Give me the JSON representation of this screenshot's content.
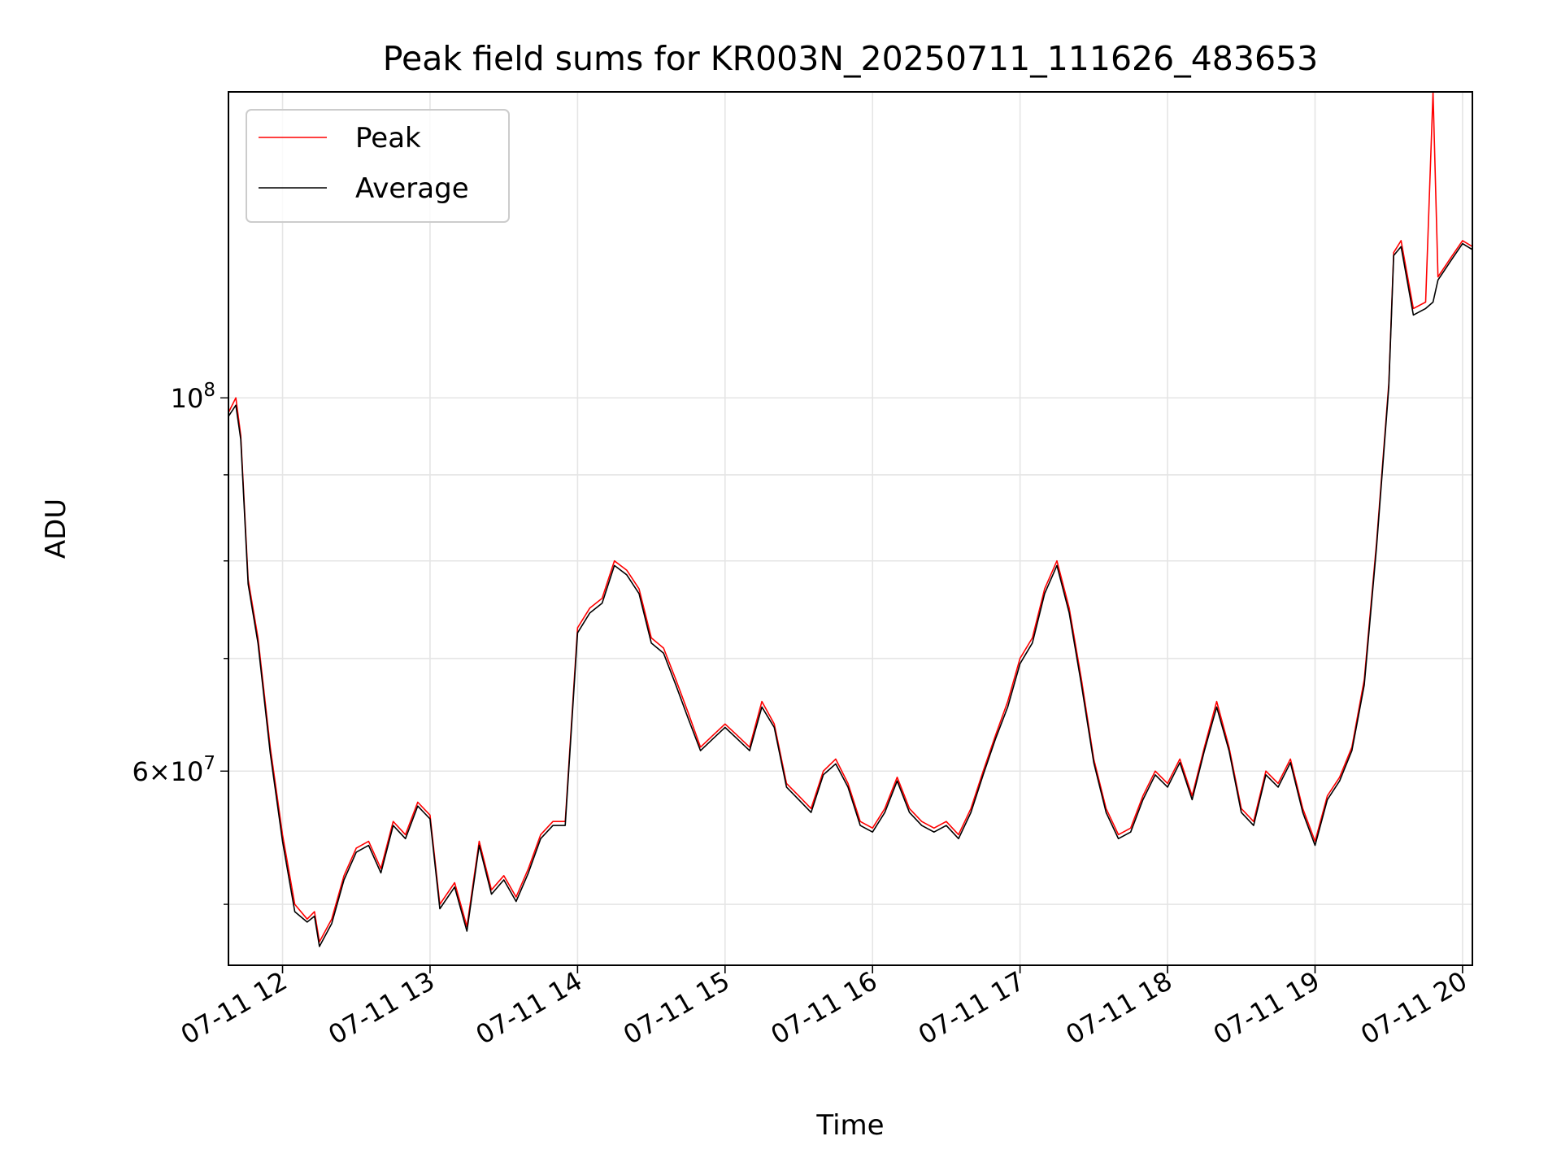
{
  "chart_data": {
    "type": "line",
    "title": "Peak field sums for KR003N_20250711_111626_483653",
    "xlabel": "Time",
    "ylabel": "ADU",
    "y_scale": "log",
    "xlim": [
      "2025-07-11 11:38",
      "2025-07-11 20:04"
    ],
    "ylim": [
      46000000,
      152000000
    ],
    "grid": true,
    "legend_position": "top-left",
    "x_ticks": [
      "07-11 12",
      "07-11 13",
      "07-11 14",
      "07-11 15",
      "07-11 16",
      "07-11 17",
      "07-11 18",
      "07-11 19",
      "07-11 20"
    ],
    "y_tick_labels": [
      {
        "value": 100000000,
        "mantissa": "",
        "base": "10",
        "exponent": "8"
      },
      {
        "value": 60000000,
        "mantissa": "6×",
        "base": "10",
        "exponent": "7"
      }
    ],
    "y_minor_ticks": [
      50000000,
      70000000,
      80000000,
      90000000
    ],
    "x": [
      "11:38",
      "11:41",
      "11:43",
      "11:46",
      "11:50",
      "11:55",
      "12:00",
      "12:05",
      "12:10",
      "12:13",
      "12:15",
      "12:20",
      "12:25",
      "12:30",
      "12:35",
      "12:40",
      "12:45",
      "12:50",
      "12:55",
      "13:00",
      "13:04",
      "13:10",
      "13:15",
      "13:20",
      "13:25",
      "13:30",
      "13:35",
      "13:40",
      "13:45",
      "13:50",
      "13:55",
      "14:00",
      "14:05",
      "14:10",
      "14:15",
      "14:20",
      "14:25",
      "14:30",
      "14:35",
      "14:40",
      "14:45",
      "14:50",
      "14:55",
      "15:00",
      "15:05",
      "15:10",
      "15:15",
      "15:20",
      "15:25",
      "15:30",
      "15:35",
      "15:40",
      "15:45",
      "15:50",
      "15:55",
      "16:00",
      "16:05",
      "16:10",
      "16:15",
      "16:20",
      "16:25",
      "16:30",
      "16:35",
      "16:40",
      "16:45",
      "16:50",
      "16:55",
      "17:00",
      "17:05",
      "17:10",
      "17:15",
      "17:20",
      "17:25",
      "17:30",
      "17:35",
      "17:40",
      "17:45",
      "17:50",
      "17:55",
      "18:00",
      "18:05",
      "18:10",
      "18:15",
      "18:20",
      "18:25",
      "18:30",
      "18:35",
      "18:40",
      "18:45",
      "18:50",
      "18:55",
      "19:00",
      "19:05",
      "19:10",
      "19:15",
      "19:20",
      "19:25",
      "19:30",
      "19:32",
      "19:35",
      "19:40",
      "19:45",
      "19:48",
      "19:50",
      "19:55",
      "20:00",
      "20:04"
    ],
    "series": [
      {
        "name": "Peak",
        "color": "#ff0000",
        "values": [
          98000000,
          100000000,
          95000000,
          78000000,
          72000000,
          62000000,
          55000000,
          50000000,
          49000000,
          49500000,
          47500000,
          49000000,
          52000000,
          54000000,
          54500000,
          52500000,
          56000000,
          55000000,
          57500000,
          56500000,
          50000000,
          51500000,
          48500000,
          54500000,
          51000000,
          52000000,
          50500000,
          52500000,
          55000000,
          56000000,
          56000000,
          73000000,
          75000000,
          76000000,
          80000000,
          79000000,
          77000000,
          72000000,
          71000000,
          68000000,
          65000000,
          62000000,
          63000000,
          64000000,
          63000000,
          62000000,
          66000000,
          64000000,
          59000000,
          58000000,
          57000000,
          60000000,
          61000000,
          59000000,
          56000000,
          55500000,
          57000000,
          59500000,
          57000000,
          56000000,
          55500000,
          56000000,
          55000000,
          57000000,
          60000000,
          63000000,
          66000000,
          70000000,
          72000000,
          77000000,
          80000000,
          75000000,
          68000000,
          61000000,
          57000000,
          55000000,
          55500000,
          58000000,
          60000000,
          59000000,
          61000000,
          58000000,
          62000000,
          66000000,
          62000000,
          57000000,
          56000000,
          60000000,
          59000000,
          61000000,
          57000000,
          54500000,
          58000000,
          59500000,
          62000000,
          68000000,
          82000000,
          102000000,
          122000000,
          124000000,
          113000000,
          114000000,
          152000000,
          118000000,
          121000000,
          124000000,
          123000000
        ]
      },
      {
        "name": "Average",
        "color": "#000000",
        "values": [
          97500000,
          99000000,
          94500000,
          77500000,
          71500000,
          61500000,
          54500000,
          49500000,
          48800000,
          49200000,
          47200000,
          48700000,
          51700000,
          53700000,
          54200000,
          52200000,
          55700000,
          54700000,
          57200000,
          56200000,
          49700000,
          51200000,
          48200000,
          54200000,
          50700000,
          51700000,
          50200000,
          52200000,
          54700000,
          55700000,
          55700000,
          72500000,
          74500000,
          75500000,
          79500000,
          78500000,
          76500000,
          71500000,
          70500000,
          67500000,
          64500000,
          61700000,
          62700000,
          63700000,
          62700000,
          61700000,
          65500000,
          63700000,
          58700000,
          57700000,
          56700000,
          59700000,
          60600000,
          58700000,
          55700000,
          55200000,
          56700000,
          59200000,
          56700000,
          55700000,
          55200000,
          55700000,
          54700000,
          56700000,
          59700000,
          62700000,
          65500000,
          69500000,
          71500000,
          76500000,
          79500000,
          74500000,
          67500000,
          60700000,
          56700000,
          54700000,
          55200000,
          57700000,
          59700000,
          58700000,
          60700000,
          57700000,
          61700000,
          65500000,
          61700000,
          56700000,
          55700000,
          59700000,
          58700000,
          60700000,
          56700000,
          54200000,
          57700000,
          59200000,
          61700000,
          67500000,
          81500000,
          101500000,
          121500000,
          123000000,
          112000000,
          113000000,
          114000000,
          117500000,
          120500000,
          123500000,
          122500000
        ]
      }
    ]
  }
}
